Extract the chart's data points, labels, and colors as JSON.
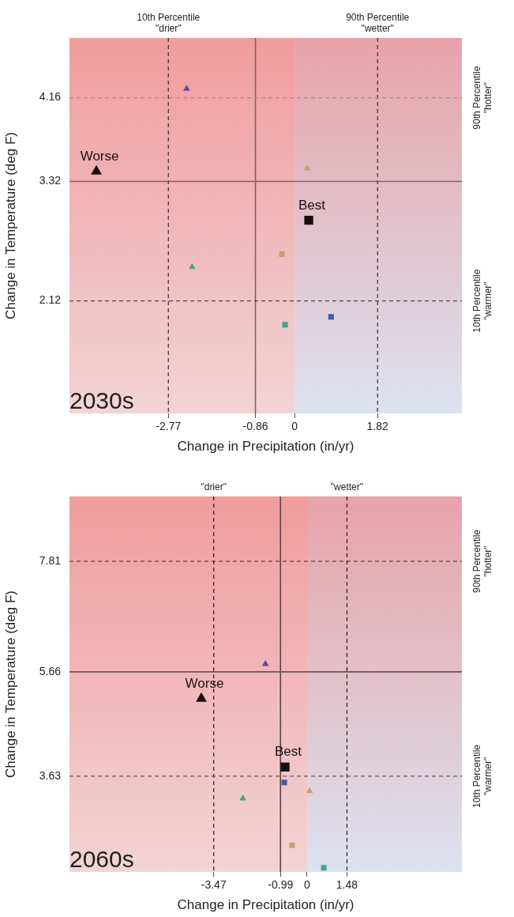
{
  "chart_data": [
    {
      "type": "scatter",
      "title": "2030s",
      "xlabel": "Change in Precipitation (in/yr)",
      "ylabel": "Change in Temperature (deg F)",
      "xlim": [
        -4.94,
        3.67
      ],
      "ylim": [
        0.99,
        4.76
      ],
      "xticks": [
        -2.77,
        -0.86,
        0,
        1.82
      ],
      "yticks": [
        2.12,
        3.32,
        4.16
      ],
      "bands": [
        {
          "axis": "x",
          "from": -4.94,
          "to": 0,
          "color": "#f2d4d6"
        },
        {
          "axis": "x",
          "from": 0,
          "to": 3.67,
          "color": "#dce2ef"
        }
      ],
      "ref_lines": [
        {
          "axis": "x",
          "value": -2.77,
          "label": "10th Percentile\n\"drier\"",
          "line_style": "dashed",
          "color": "#3a2a2a"
        },
        {
          "axis": "x",
          "value": -0.86,
          "line_style": "solid",
          "color": "#7a6464"
        },
        {
          "axis": "x",
          "value": 1.82,
          "label": "90th Percentile\n\"wetter\"",
          "line_style": "dashed",
          "color": "#3a2a2a"
        },
        {
          "axis": "y",
          "value": 4.16,
          "label": "90th Percentile\n\"hotter\"",
          "line_style": "dashed",
          "color": "#b08a8a"
        },
        {
          "axis": "y",
          "value": 3.32,
          "line_style": "solid",
          "color": "#7a6464"
        },
        {
          "axis": "y",
          "value": 2.12,
          "label": "10th Percentile\n\"warmer\"",
          "line_style": "dashed",
          "color": "#5a4646"
        }
      ],
      "series": [
        {
          "name": "Worse",
          "color": "#1a0f10",
          "marker": "triangle",
          "x": [
            -4.35
          ],
          "values": [
            3.42
          ]
        },
        {
          "name": "Best",
          "color": "#1a0f10",
          "marker": "square",
          "x": [
            0.31
          ],
          "values": [
            2.93
          ]
        },
        {
          "color": "#5a4a9a",
          "marker": "triangle",
          "x": [
            -2.37
          ],
          "values": [
            4.25
          ]
        },
        {
          "color": "#c8a070",
          "marker": "triangle",
          "x": [
            0.28
          ],
          "values": [
            3.45
          ]
        },
        {
          "color": "#c8a070",
          "marker": "square",
          "x": [
            -0.28
          ],
          "values": [
            2.59
          ]
        },
        {
          "color": "#3aa888",
          "marker": "triangle",
          "x": [
            -2.25
          ],
          "values": [
            2.46
          ]
        },
        {
          "color": "#3aa888",
          "marker": "square",
          "x": [
            -0.21
          ],
          "values": [
            1.88
          ]
        },
        {
          "color": "#3a5aa8",
          "marker": "square",
          "x": [
            0.8
          ],
          "values": [
            1.96
          ]
        }
      ]
    },
    {
      "type": "scatter",
      "title": "2060s",
      "xlabel": "Change in Precipitation (in/yr)",
      "ylabel": "Change in Temperature (deg F)",
      "xlim": [
        -8.83,
        5.75
      ],
      "ylim": [
        1.77,
        9.07
      ],
      "xticks": [
        -3.47,
        -0.99,
        0,
        1.48
      ],
      "yticks": [
        3.63,
        5.66,
        7.81
      ],
      "bands": [
        {
          "axis": "x",
          "from": -8.83,
          "to": 0,
          "color": "#f2d4d6"
        },
        {
          "axis": "x",
          "from": 0,
          "to": 5.75,
          "color": "#dce2ef"
        }
      ],
      "ref_lines": [
        {
          "axis": "x",
          "value": -3.47,
          "label": "\"drier\"",
          "line_style": "dashed",
          "color": "#2a1a1a"
        },
        {
          "axis": "x",
          "value": -0.99,
          "line_style": "solid",
          "color": "#5a4646"
        },
        {
          "axis": "x",
          "value": 1.48,
          "label": "\"wetter\"",
          "line_style": "dashed",
          "color": "#2a1a1a"
        },
        {
          "axis": "y",
          "value": 7.81,
          "label": "90th Percentile\n\"hotter\"",
          "line_style": "dashed",
          "color": "#3a2a2a"
        },
        {
          "axis": "y",
          "value": 5.66,
          "line_style": "solid",
          "color": "#6a5656"
        },
        {
          "axis": "y",
          "value": 3.63,
          "label": "10th Percentile\n\"warmer\"",
          "line_style": "dashed",
          "color": "#6a5656"
        }
      ],
      "series": [
        {
          "name": "Worse",
          "color": "#1a0f10",
          "marker": "triangle",
          "x": [
            -3.93
          ],
          "values": [
            5.14
          ]
        },
        {
          "name": "Best",
          "color": "#1a0f10",
          "marker": "square",
          "x": [
            -0.82
          ],
          "values": [
            3.81
          ]
        },
        {
          "color": "#5a4a9a",
          "marker": "triangle",
          "x": [
            -1.55
          ],
          "values": [
            5.81
          ]
        },
        {
          "color": "#3a5aa8",
          "marker": "square",
          "x": [
            -0.85
          ],
          "values": [
            3.51
          ]
        },
        {
          "color": "#c8a070",
          "marker": "triangle",
          "x": [
            0.09
          ],
          "values": [
            3.34
          ]
        },
        {
          "color": "#3aa888",
          "marker": "triangle",
          "x": [
            -2.39
          ],
          "values": [
            3.2
          ]
        },
        {
          "color": "#c8a070",
          "marker": "square",
          "x": [
            -0.56
          ],
          "values": [
            2.29
          ]
        },
        {
          "color": "#3aa888",
          "marker": "square",
          "x": [
            0.62
          ],
          "values": [
            1.85
          ]
        }
      ]
    }
  ]
}
